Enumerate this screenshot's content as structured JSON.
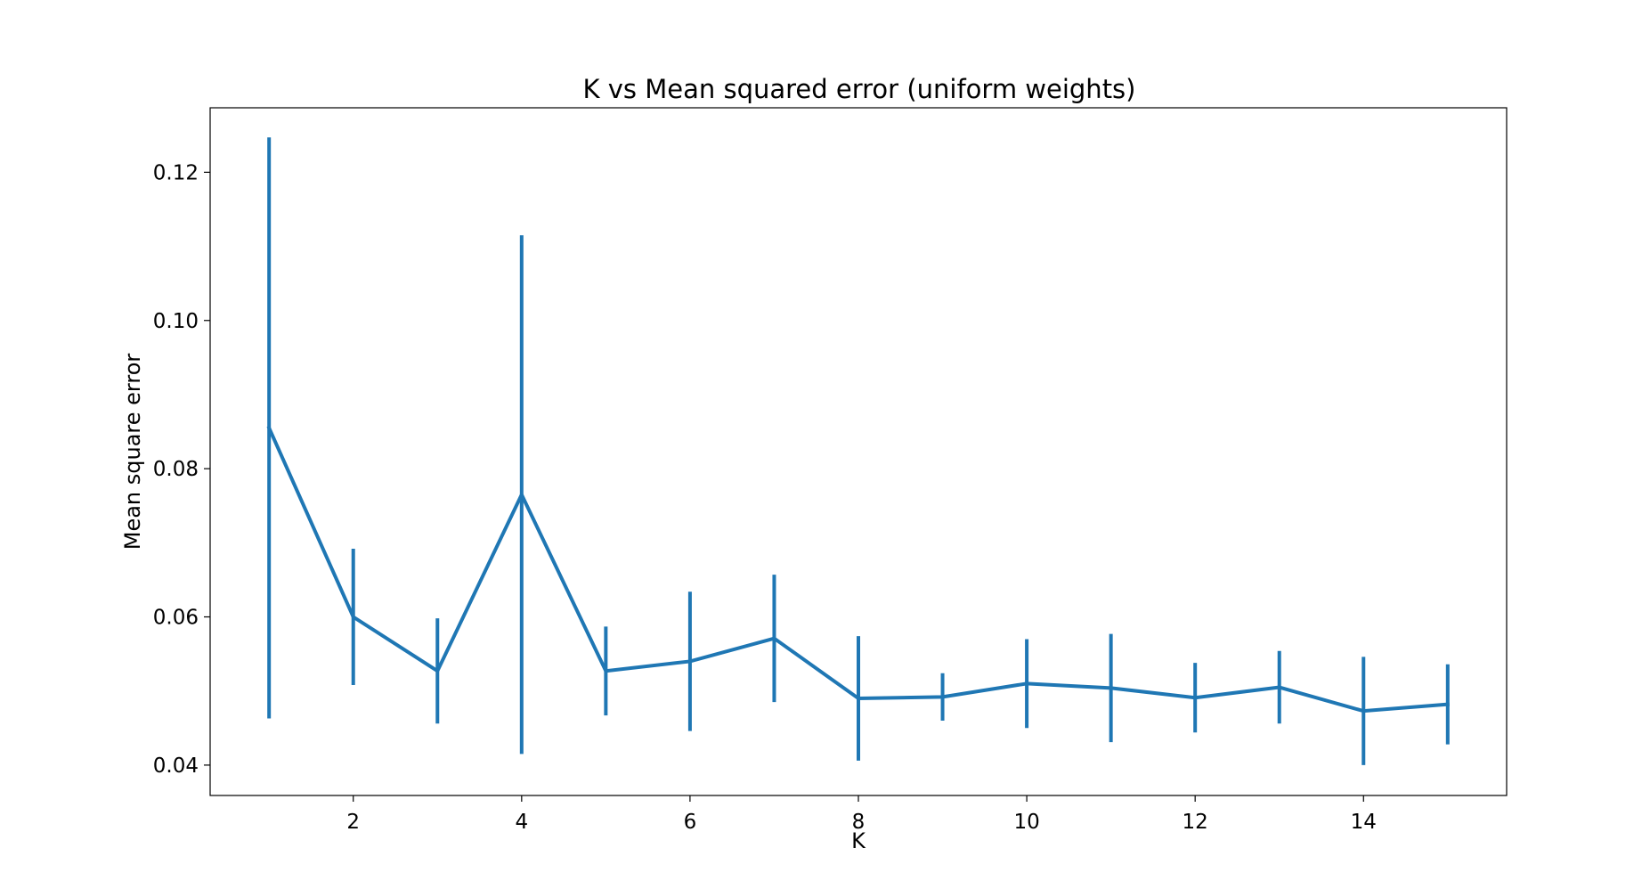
{
  "chart_data": {
    "type": "line",
    "title": "K vs Mean squared error (uniform weights)",
    "xlabel": "K",
    "ylabel": "Mean square error",
    "x": [
      1,
      2,
      3,
      4,
      5,
      6,
      7,
      8,
      9,
      10,
      11,
      12,
      13,
      14,
      15
    ],
    "series": [
      {
        "values": [
          0.0855,
          0.06,
          0.0527,
          0.0765,
          0.0527,
          0.054,
          0.0571,
          0.049,
          0.0492,
          0.051,
          0.0504,
          0.0491,
          0.0505,
          0.0473,
          0.0482
        ],
        "errors": [
          0.0392,
          0.0092,
          0.0071,
          0.035,
          0.006,
          0.0094,
          0.0086,
          0.0084,
          0.0032,
          0.006,
          0.0073,
          0.0047,
          0.0049,
          0.0073,
          0.0054
        ],
        "color": "#1f77b4"
      }
    ],
    "xlim": [
      0.3,
      15.7
    ],
    "ylim": [
      0.0359,
      0.1287
    ],
    "xticks": [
      2,
      4,
      6,
      8,
      10,
      12,
      14
    ],
    "xtick_labels": [
      "2",
      "4",
      "6",
      "8",
      "10",
      "12",
      "14"
    ],
    "yticks": [
      0.04,
      0.06,
      0.08,
      0.1,
      0.12
    ],
    "ytick_labels": [
      "0.04",
      "0.06",
      "0.08",
      "0.10",
      "0.12"
    ],
    "grid": false,
    "legend": false
  }
}
